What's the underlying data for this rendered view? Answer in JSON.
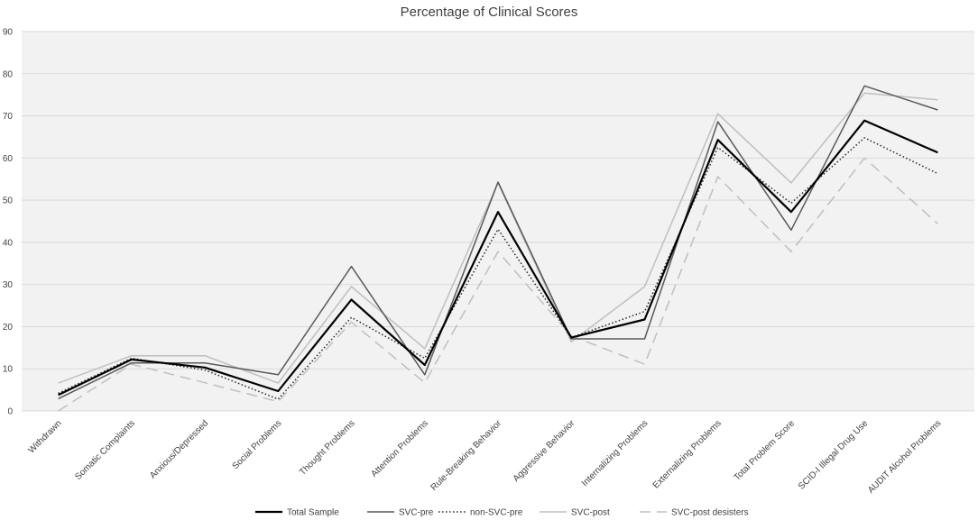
{
  "chart_data": {
    "type": "line",
    "title": "Percentage of Clinical Scores",
    "xlabel": "",
    "ylabel": "",
    "ylim": [
      0,
      90
    ],
    "yticks": [
      0,
      10,
      20,
      30,
      40,
      50,
      60,
      70,
      80,
      90
    ],
    "grid": true,
    "legend_position": "bottom",
    "categories": [
      "Withdrawn",
      "Somatic Complaints",
      "Anxious/Depressed",
      "Social Problems",
      "Thought Problems",
      "Attention Problems",
      "Rule-Breaking Behavior",
      "Aggressive Behavior",
      "Internalizing Problems",
      "Externalizing Problems",
      "Total Problem Score",
      "SCID-I Illegal Drug Use",
      "AUDIT Alcohol Problems"
    ],
    "series": [
      {
        "name": "Total Sample",
        "color": "#000000",
        "style": "solid-bold",
        "values": [
          3.8,
          12.2,
          10.3,
          4.7,
          26.4,
          10.9,
          47.2,
          17.4,
          21.7,
          64.3,
          47.2,
          68.9,
          61.3
        ]
      },
      {
        "name": "SVC-pre",
        "color": "#595959",
        "style": "solid",
        "values": [
          2.9,
          11.4,
          11.4,
          8.6,
          34.3,
          8.6,
          54.3,
          17.1,
          17.1,
          68.6,
          42.9,
          77.1,
          71.4
        ]
      },
      {
        "name": "non-SVC-pre",
        "color": "#262626",
        "style": "dotted",
        "values": [
          4.2,
          12.5,
          9.7,
          2.8,
          22.2,
          12.5,
          43.1,
          17.4,
          23.6,
          62.5,
          49.3,
          64.8,
          56.3
        ]
      },
      {
        "name": "SVC-post",
        "color": "#bfbfbf",
        "style": "solid",
        "values": [
          6.6,
          13.1,
          13.1,
          6.6,
          29.5,
          14.8,
          54.1,
          16.4,
          29.5,
          70.5,
          54.1,
          75.4,
          73.8
        ]
      },
      {
        "name": "SVC-post desisters",
        "color": "#bfbfbf",
        "style": "dashed",
        "values": [
          0.0,
          11.1,
          6.7,
          2.2,
          21.1,
          6.7,
          37.8,
          17.8,
          11.1,
          55.6,
          37.8,
          60.0,
          44.4
        ]
      }
    ]
  }
}
